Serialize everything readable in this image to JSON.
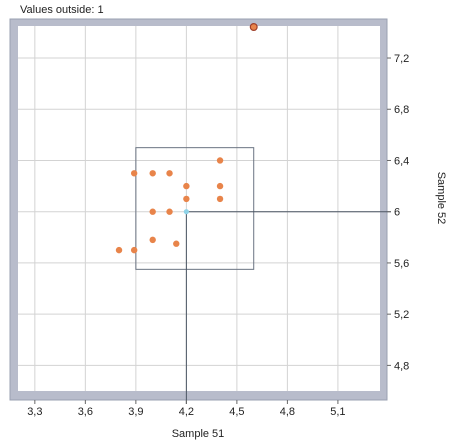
{
  "header": {
    "values_outside_label": "Values outside: 1"
  },
  "chart_data": {
    "type": "scatter",
    "xlabel": "Sample 51",
    "ylabel": "Sample 52",
    "xlim": [
      3.2,
      5.35
    ],
    "ylim": [
      4.6,
      7.45
    ],
    "xticks": [
      "3,3",
      "3,6",
      "3,9",
      "4,2",
      "4,5",
      "4,8",
      "5,1"
    ],
    "xtick_values": [
      3.3,
      3.6,
      3.9,
      4.2,
      4.5,
      4.8,
      5.1
    ],
    "yticks": [
      "4,8",
      "5,2",
      "5,6",
      "6",
      "6,4",
      "6,8",
      "7,2"
    ],
    "ytick_values": [
      4.8,
      5.2,
      5.6,
      6.0,
      6.4,
      6.8,
      7.2
    ],
    "grid": true,
    "colors": {
      "points": "#e8844a",
      "highlight_point": "#8fd3e8",
      "outlier": "#e8844a",
      "frame": "#b8bccb",
      "grid": "#d3d3d3",
      "box": "#6a7382",
      "crosshair": "#4a5563"
    },
    "points": [
      {
        "x": 3.8,
        "y": 5.7
      },
      {
        "x": 3.89,
        "y": 5.7
      },
      {
        "x": 3.89,
        "y": 6.3
      },
      {
        "x": 4.0,
        "y": 6.3
      },
      {
        "x": 4.1,
        "y": 6.3
      },
      {
        "x": 4.0,
        "y": 6.0
      },
      {
        "x": 4.1,
        "y": 6.0
      },
      {
        "x": 4.0,
        "y": 5.78
      },
      {
        "x": 4.14,
        "y": 5.75
      },
      {
        "x": 4.2,
        "y": 6.2
      },
      {
        "x": 4.2,
        "y": 6.1
      },
      {
        "x": 4.4,
        "y": 6.4
      },
      {
        "x": 4.4,
        "y": 6.2
      },
      {
        "x": 4.4,
        "y": 6.1
      }
    ],
    "highlight": {
      "x": 4.2,
      "y": 6.0
    },
    "outlier": {
      "x": 4.6,
      "y": 7.48
    },
    "box": {
      "x0": 3.9,
      "x1": 4.6,
      "y0": 5.55,
      "y1": 6.5
    }
  }
}
